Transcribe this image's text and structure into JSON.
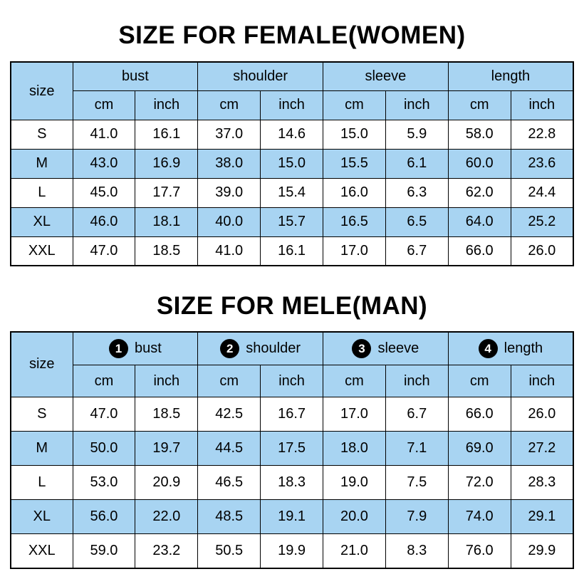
{
  "page": {
    "background": "#ffffff"
  },
  "colors": {
    "header_fill": "#a8d4f2",
    "stripe_fill": "#a8d4f2",
    "border": "#000000",
    "badge_fill": "#000000",
    "badge_text": "#ffffff",
    "text": "#000000"
  },
  "tables": [
    {
      "title": "SIZE FOR FEMALE(WOMEN)",
      "corner_label": "size",
      "groups": [
        {
          "badge": null,
          "label": "bust"
        },
        {
          "badge": null,
          "label": "shoulder"
        },
        {
          "badge": null,
          "label": "sleeve"
        },
        {
          "badge": null,
          "label": "length"
        }
      ],
      "unit_row": [
        "cm",
        "inch",
        "cm",
        "inch",
        "cm",
        "inch",
        "cm",
        "inch"
      ],
      "rows": [
        {
          "size": "S",
          "values": [
            "41.0",
            "16.1",
            "37.0",
            "14.6",
            "15.0",
            "5.9",
            "58.0",
            "22.8"
          ]
        },
        {
          "size": "M",
          "values": [
            "43.0",
            "16.9",
            "38.0",
            "15.0",
            "15.5",
            "6.1",
            "60.0",
            "23.6"
          ]
        },
        {
          "size": "L",
          "values": [
            "45.0",
            "17.7",
            "39.0",
            "15.4",
            "16.0",
            "6.3",
            "62.0",
            "24.4"
          ]
        },
        {
          "size": "XL",
          "values": [
            "46.0",
            "18.1",
            "40.0",
            "15.7",
            "16.5",
            "6.5",
            "64.0",
            "25.2"
          ]
        },
        {
          "size": "XXL",
          "values": [
            "47.0",
            "18.5",
            "41.0",
            "16.1",
            "17.0",
            "6.7",
            "66.0",
            "26.0"
          ]
        }
      ]
    },
    {
      "title": "SIZE FOR MELE(MAN)",
      "corner_label": "size",
      "groups": [
        {
          "badge": "1",
          "label": "bust"
        },
        {
          "badge": "2",
          "label": "shoulder"
        },
        {
          "badge": "3",
          "label": "sleeve"
        },
        {
          "badge": "4",
          "label": "length"
        }
      ],
      "unit_row": [
        "cm",
        "inch",
        "cm",
        "inch",
        "cm",
        "inch",
        "cm",
        "inch"
      ],
      "rows": [
        {
          "size": "S",
          "values": [
            "47.0",
            "18.5",
            "42.5",
            "16.7",
            "17.0",
            "6.7",
            "66.0",
            "26.0"
          ]
        },
        {
          "size": "M",
          "values": [
            "50.0",
            "19.7",
            "44.5",
            "17.5",
            "18.0",
            "7.1",
            "69.0",
            "27.2"
          ]
        },
        {
          "size": "L",
          "values": [
            "53.0",
            "20.9",
            "46.5",
            "18.3",
            "19.0",
            "7.5",
            "72.0",
            "28.3"
          ]
        },
        {
          "size": "XL",
          "values": [
            "56.0",
            "22.0",
            "48.5",
            "19.1",
            "20.0",
            "7.9",
            "74.0",
            "29.1"
          ]
        },
        {
          "size": "XXL",
          "values": [
            "59.0",
            "23.2",
            "50.5",
            "19.9",
            "21.0",
            "8.3",
            "76.0",
            "29.9"
          ]
        }
      ]
    }
  ],
  "chart_data": [
    {
      "type": "table",
      "title": "SIZE FOR FEMALE(WOMEN)",
      "columns": [
        "size",
        "bust cm",
        "bust inch",
        "shoulder cm",
        "shoulder inch",
        "sleeve cm",
        "sleeve inch",
        "length cm",
        "length inch"
      ],
      "rows": [
        [
          "S",
          41.0,
          16.1,
          37.0,
          14.6,
          15.0,
          5.9,
          58.0,
          22.8
        ],
        [
          "M",
          43.0,
          16.9,
          38.0,
          15.0,
          15.5,
          6.1,
          60.0,
          23.6
        ],
        [
          "L",
          45.0,
          17.7,
          39.0,
          15.4,
          16.0,
          6.3,
          62.0,
          24.4
        ],
        [
          "XL",
          46.0,
          18.1,
          40.0,
          15.7,
          16.5,
          6.5,
          64.0,
          25.2
        ],
        [
          "XXL",
          47.0,
          18.5,
          41.0,
          16.1,
          17.0,
          6.7,
          66.0,
          26.0
        ]
      ]
    },
    {
      "type": "table",
      "title": "SIZE FOR MELE(MAN)",
      "columns": [
        "size",
        "bust cm",
        "bust inch",
        "shoulder cm",
        "shoulder inch",
        "sleeve cm",
        "sleeve inch",
        "length cm",
        "length inch"
      ],
      "rows": [
        [
          "S",
          47.0,
          18.5,
          42.5,
          16.7,
          17.0,
          6.7,
          66.0,
          26.0
        ],
        [
          "M",
          50.0,
          19.7,
          44.5,
          17.5,
          18.0,
          7.1,
          69.0,
          27.2
        ],
        [
          "L",
          53.0,
          20.9,
          46.5,
          18.3,
          19.0,
          7.5,
          72.0,
          28.3
        ],
        [
          "XL",
          56.0,
          22.0,
          48.5,
          19.1,
          20.0,
          7.9,
          74.0,
          29.1
        ],
        [
          "XXL",
          59.0,
          23.2,
          50.5,
          19.9,
          21.0,
          8.3,
          76.0,
          29.9
        ]
      ]
    }
  ]
}
